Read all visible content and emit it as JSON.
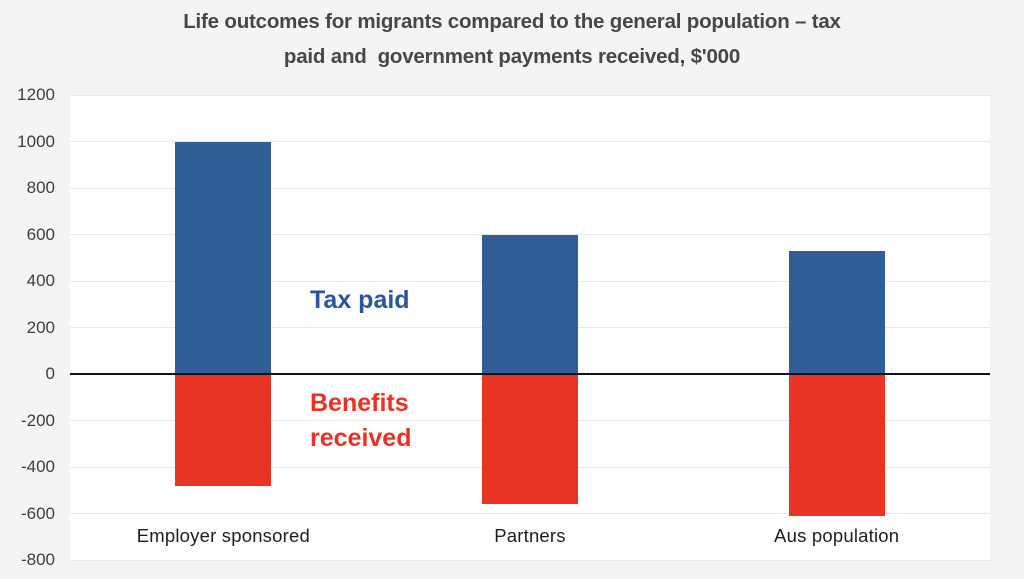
{
  "page": {
    "background": "#f4f4f4",
    "plot_background": "#ffffff",
    "title_lines": [
      "Life outcomes for migrants compared to the general population – tax",
      "paid and  government payments received, $'000"
    ],
    "title_color": "#474747"
  },
  "chart_data": {
    "type": "bar",
    "title": "Life outcomes for migrants compared to the general population – tax paid and government payments received, $'000",
    "categories": [
      "Employer sponsored",
      "Partners",
      "Aus population"
    ],
    "series": [
      {
        "name": "Tax paid",
        "values": [
          1000,
          600,
          530
        ],
        "color": "#315E97",
        "label_color": "#2A55A0"
      },
      {
        "name": "Benefits received",
        "values": [
          -480,
          -560,
          -610
        ],
        "color": "#EA3423",
        "label_color": "#EC3124"
      }
    ],
    "ylim": [
      -800,
      1200
    ],
    "yticks": [
      1200,
      1000,
      800,
      600,
      400,
      200,
      0,
      "-200",
      "-400",
      "-600",
      "-800"
    ],
    "ytick_values": [
      1200,
      1000,
      800,
      600,
      400,
      200,
      0,
      -200,
      -400,
      -600,
      -800
    ],
    "xlabel": "",
    "ylabel": "",
    "grid": true,
    "gridline_color": "#E8E8E8",
    "zero_line_color": "#141414",
    "legend_position": "inline text annotations inside plot (blue above zero line, red below)"
  }
}
